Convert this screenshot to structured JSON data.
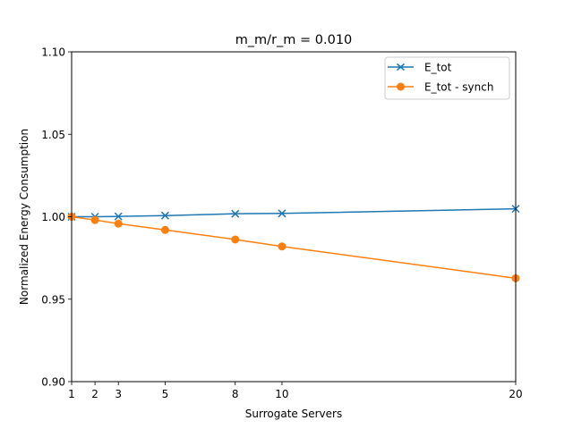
{
  "chart_data": {
    "type": "line",
    "title": "m_m/r_m = 0.010",
    "xlabel": "Surrogate Servers",
    "ylabel": "Normalized Energy Consumption",
    "xlim": [
      1,
      20
    ],
    "ylim": [
      0.9,
      1.1
    ],
    "x_ticks": [
      1,
      2,
      3,
      5,
      8,
      10,
      20
    ],
    "y_ticks": [
      0.9,
      0.95,
      1.0,
      1.05,
      1.1
    ],
    "x_tick_labels": [
      "1",
      "2",
      "3",
      "5",
      "8",
      "10",
      "20"
    ],
    "y_tick_labels": [
      "0.90",
      "0.95",
      "1.00",
      "1.05",
      "1.10"
    ],
    "grid": false,
    "legend_position": "top-right",
    "x": [
      1,
      2,
      3,
      5,
      8,
      10,
      20
    ],
    "series": [
      {
        "name": "E_tot",
        "color": "#1f77b4",
        "marker": "x",
        "values": [
          1.0,
          1.0,
          1.0002,
          1.0007,
          1.0018,
          1.002,
          1.0048
        ]
      },
      {
        "name": "E_tot - synch",
        "color": "#ff7f0e",
        "marker": "o",
        "values": [
          1.0,
          0.998,
          0.9958,
          0.992,
          0.9862,
          0.982,
          0.9627
        ]
      }
    ]
  }
}
